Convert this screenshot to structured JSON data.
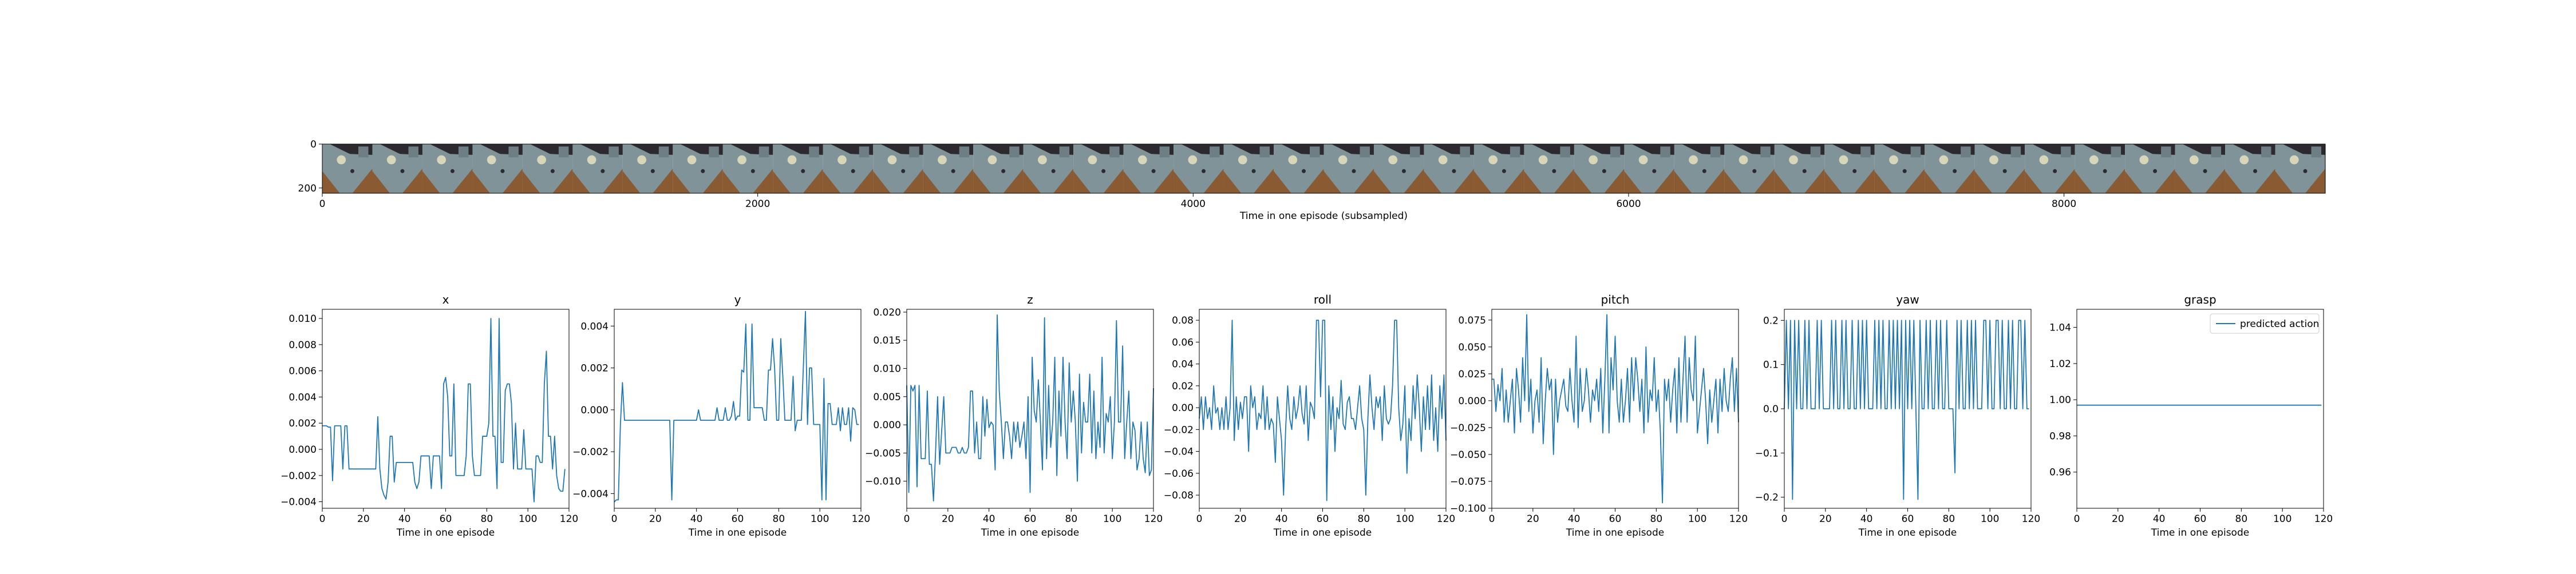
{
  "chart_data": [
    {
      "type": "image_strip",
      "xlabel": "Time in one episode (subsampled)",
      "x_ticks": [
        "0",
        "2000",
        "4000",
        "6000",
        "8000"
      ],
      "y_ticks": [
        "0",
        "200"
      ],
      "xlim": [
        0,
        9200
      ],
      "ylim": [
        0,
        224
      ],
      "frame_count": 40,
      "colors": {
        "wood": "#8a5a33",
        "tray": "#7f9398",
        "dark": "#2c2a2e",
        "light": "#d8d6b8",
        "sky": "#6f7e84"
      }
    },
    {
      "type": "line",
      "title": "x",
      "xlabel": "Time in one episode",
      "xlim": [
        0,
        120
      ],
      "ylim": [
        -0.0045,
        0.0107
      ],
      "x_ticks": [
        0,
        20,
        40,
        60,
        80,
        100,
        120
      ],
      "y_ticks": [
        -0.004,
        -0.002,
        0.0,
        0.002,
        0.004,
        0.006,
        0.008,
        0.01
      ],
      "y_tick_labels": [
        "−0.004",
        "−0.002",
        "0.000",
        "0.002",
        "0.004",
        "0.006",
        "0.008",
        "0.010"
      ],
      "color": "#1f77b4",
      "values": [
        0.0018,
        0.0018,
        0.0018,
        0.0017,
        0.0017,
        -0.0024,
        0.0018,
        0.0018,
        0.0018,
        0.0018,
        -0.0015,
        0.0018,
        0.0018,
        -0.0015,
        -0.0015,
        -0.0015,
        -0.0015,
        -0.0015,
        -0.0015,
        -0.0015,
        -0.0015,
        -0.0015,
        -0.0015,
        -0.0015,
        -0.0015,
        -0.0015,
        -0.0015,
        0.0025,
        -0.0015,
        -0.003,
        -0.0035,
        -0.0038,
        -0.0025,
        0.001,
        0.001,
        -0.0025,
        -0.001,
        -0.001,
        -0.001,
        -0.001,
        -0.001,
        -0.001,
        -0.001,
        -0.001,
        -0.001,
        -0.0025,
        -0.003,
        -0.0025,
        -0.0005,
        -0.0005,
        -0.0005,
        -0.0005,
        -0.0005,
        -0.003,
        -0.0005,
        -0.0005,
        -0.0005,
        -0.0005,
        -0.003,
        0.005,
        0.0055,
        0.004,
        -0.0005,
        -0.0005,
        0.005,
        -0.002,
        -0.002,
        -0.002,
        -0.002,
        -0.002,
        -0.0005,
        0.005,
        0.005,
        -0.0005,
        -0.002,
        -0.002,
        -0.002,
        -0.002,
        0.001,
        0.001,
        0.001,
        0.002,
        0.01,
        0.001,
        0.001,
        -0.003,
        0.01,
        -0.001,
        -0.001,
        0.0045,
        0.005,
        0.005,
        0.0035,
        -0.0015,
        0.002,
        -0.0015,
        -0.0015,
        -0.0015,
        0.0015,
        -0.0015,
        -0.0015,
        -0.0015,
        -0.0015,
        -0.004,
        -0.0005,
        -0.0005,
        -0.001,
        -0.001,
        0.005,
        0.0075,
        0.001,
        0.001,
        -0.0015,
        0.001,
        -0.002,
        -0.003,
        -0.0032,
        -0.0032,
        -0.0015
      ]
    },
    {
      "type": "line",
      "title": "y",
      "xlabel": "Time in one episode",
      "xlim": [
        0,
        120
      ],
      "ylim": [
        -0.0047,
        0.0048
      ],
      "x_ticks": [
        0,
        20,
        40,
        60,
        80,
        100,
        120
      ],
      "y_ticks": [
        -0.004,
        -0.002,
        0.0,
        0.002,
        0.004
      ],
      "y_tick_labels": [
        "−0.004",
        "−0.002",
        "0.000",
        "0.002",
        "0.004"
      ],
      "color": "#1f77b4",
      "values": [
        -0.0044,
        -0.0043,
        -0.0043,
        -0.0007,
        0.0013,
        -0.0005,
        -0.0005,
        -0.0005,
        -0.0005,
        -0.0005,
        -0.0005,
        -0.0005,
        -0.0005,
        -0.0005,
        -0.0005,
        -0.0005,
        -0.0005,
        -0.0005,
        -0.0005,
        -0.0005,
        -0.0005,
        -0.0005,
        -0.0005,
        -0.0005,
        -0.0005,
        -0.0005,
        -0.0005,
        -0.0005,
        -0.0043,
        -0.0005,
        -0.0005,
        -0.0005,
        -0.0005,
        -0.0005,
        -0.0005,
        -0.0005,
        -0.0005,
        -0.0005,
        -0.0005,
        -0.0005,
        -0.0005,
        0.0,
        -0.0005,
        -0.0005,
        -0.0005,
        -0.0005,
        -0.0005,
        -0.0005,
        -0.0005,
        -0.0005,
        0.0001,
        -0.0005,
        -0.0005,
        -0.0005,
        0.0001,
        -0.0005,
        -0.0005,
        -0.0003,
        0.0004,
        -0.0005,
        -0.0003,
        -0.0003,
        0.0019,
        0.0018,
        0.0041,
        -0.0005,
        -0.0005,
        0.0041,
        0.0001,
        0.0001,
        0.0001,
        0.0001,
        0.0001,
        -0.0005,
        -0.0005,
        0.0019,
        0.0019,
        0.0034,
        0.002,
        -0.0005,
        -0.0005,
        0.0034,
        0.0016,
        -0.0005,
        -0.0005,
        -0.0005,
        -0.0005,
        0.0016,
        -0.001,
        -0.0005,
        -0.0005,
        -0.0005,
        0.0021,
        0.0047,
        -0.0007,
        0.002,
        0.002,
        -0.0007,
        -0.0007,
        -0.0007,
        -0.0007,
        -0.0043,
        0.0015,
        -0.0043,
        0.0003,
        0.0003,
        -0.0007,
        -0.0007,
        -0.0007,
        0.0001,
        -0.001,
        0.0001,
        -0.0007,
        -0.0007,
        0.0001,
        -0.0015,
        0.0001,
        0.0,
        -0.0007,
        -0.0007
      ]
    },
    {
      "type": "line",
      "title": "z",
      "xlabel": "Time in one episode",
      "xlim": [
        0,
        120
      ],
      "ylim": [
        -0.0148,
        0.0205
      ],
      "x_ticks": [
        0,
        20,
        40,
        60,
        80,
        100,
        120
      ],
      "y_ticks": [
        -0.01,
        -0.005,
        0.0,
        0.005,
        0.01,
        0.015,
        0.02
      ],
      "y_tick_labels": [
        "−0.010",
        "−0.005",
        "0.000",
        "0.005",
        "0.010",
        "0.015",
        "0.020"
      ],
      "color": "#1f77b4",
      "values": [
        0.007,
        -0.012,
        0.007,
        0.006,
        0.007,
        -0.011,
        0.007,
        -0.006,
        -0.006,
        -0.006,
        0.006,
        -0.007,
        -0.007,
        -0.0135,
        -0.005,
        0.005,
        -0.007,
        -0.001,
        0.005,
        -0.005,
        -0.005,
        -0.005,
        -0.004,
        -0.004,
        -0.004,
        -0.005,
        -0.005,
        -0.004,
        -0.005,
        -0.005,
        -0.004,
        0.006,
        0.006,
        -0.005,
        0.0005,
        -0.006,
        -0.006,
        0.005,
        -0.002,
        0.0045,
        -0.0005,
        0.0005,
        0.0,
        -0.008,
        0.0195,
        0.006,
        0.0005,
        -0.006,
        0.0005,
        0.0005,
        -0.002,
        -0.006,
        0.0005,
        -0.003,
        0.0005,
        -0.004,
        -0.002,
        0.0005,
        -0.006,
        0.005,
        -0.012,
        0.012,
        0.0025,
        0.0005,
        0.008,
        0.0005,
        -0.008,
        0.019,
        -0.006,
        0.007,
        -0.004,
        0.0005,
        0.012,
        -0.009,
        0.006,
        -0.002,
        0.012,
        0.0005,
        -0.006,
        0.011,
        0.0005,
        0.006,
        0.0005,
        -0.01,
        0.009,
        -0.005,
        0.004,
        0.0005,
        0.0005,
        0.009,
        -0.005,
        0.006,
        -0.006,
        0.0005,
        -0.004,
        0.012,
        -0.005,
        0.002,
        0.0005,
        0.005,
        -0.006,
        0.0005,
        0.0185,
        0.0005,
        0.0005,
        0.014,
        -0.006,
        0.0005,
        0.006,
        -0.006,
        0.0005,
        -0.001,
        -0.008,
        -0.006,
        0.0005,
        -0.006,
        -0.0085,
        0.0005,
        -0.009,
        -0.008,
        0.0065
      ]
    },
    {
      "type": "line",
      "title": "roll",
      "xlabel": "Time in one episode",
      "xlim": [
        0,
        120
      ],
      "ylim": [
        -0.092,
        0.09
      ],
      "x_ticks": [
        0,
        20,
        40,
        60,
        80,
        100,
        120
      ],
      "y_ticks": [
        -0.08,
        -0.06,
        -0.04,
        -0.02,
        0.0,
        0.02,
        0.04,
        0.06,
        0.08
      ],
      "y_tick_labels": [
        "−0.08",
        "−0.06",
        "−0.04",
        "−0.02",
        "0.00",
        "0.02",
        "0.04",
        "0.06",
        "0.08"
      ],
      "color": "#1f77b4",
      "values": [
        -0.01,
        0.01,
        -0.02,
        0.01,
        -0.01,
        0.0,
        -0.02,
        0.02,
        -0.005,
        0.0,
        -0.02,
        0.0,
        -0.02,
        0.01,
        -0.02,
        0.0,
        0.08,
        -0.03,
        0.01,
        -0.02,
        0.005,
        -0.01,
        0.01,
        0.01,
        -0.04,
        0.02,
        0.0,
        0.01,
        -0.02,
        -0.005,
        -0.01,
        0.02,
        -0.02,
        0.01,
        -0.02,
        -0.01,
        -0.015,
        -0.05,
        0.01,
        -0.01,
        -0.03,
        -0.08,
        -0.02,
        0.02,
        -0.01,
        -0.02,
        0.01,
        -0.01,
        0.0,
        0.02,
        -0.005,
        -0.015,
        0.02,
        -0.03,
        0.005,
        0.0,
        -0.01,
        0.08,
        0.08,
        0.01,
        0.08,
        0.08,
        -0.085,
        0.02,
        -0.02,
        0.01,
        -0.04,
        0.0,
        -0.01,
        0.025,
        -0.015,
        -0.02,
        0.005,
        0.01,
        -0.01,
        -0.01,
        -0.02,
        0.0,
        0.02,
        -0.01,
        -0.02,
        -0.08,
        -0.01,
        0.03,
        0.0,
        -0.02,
        0.01,
        0.0,
        0.01,
        -0.03,
        0.02,
        -0.01,
        -0.015,
        -0.01,
        0.02,
        0.08,
        0.08,
        0.0,
        -0.03,
        -0.015,
        0.02,
        -0.06,
        -0.01,
        -0.03,
        0.02,
        -0.01,
        0.03,
        0.0,
        -0.04,
        0.01,
        -0.02,
        0.02,
        -0.02,
        0.03,
        -0.03,
        0.0,
        -0.04,
        0.02,
        -0.01,
        0.03,
        -0.03
      ]
    },
    {
      "type": "line",
      "title": "pitch",
      "xlabel": "Time in one episode",
      "xlim": [
        0,
        120
      ],
      "ylim": [
        -0.1,
        0.085
      ],
      "x_ticks": [
        0,
        20,
        40,
        60,
        80,
        100,
        120
      ],
      "y_ticks": [
        -0.1,
        -0.075,
        -0.05,
        -0.025,
        0.0,
        0.025,
        0.05,
        0.075
      ],
      "y_tick_labels": [
        "−0.100",
        "−0.075",
        "−0.050",
        "−0.025",
        "0.000",
        "0.025",
        "0.050",
        "0.075"
      ],
      "color": "#1f77b4",
      "values": [
        0.02,
        0.02,
        -0.01,
        0.015,
        0.0,
        0.03,
        -0.02,
        0.01,
        -0.02,
        0.0,
        0.02,
        -0.03,
        0.03,
        0.01,
        -0.02,
        0.04,
        0.0,
        0.08,
        -0.01,
        0.02,
        -0.03,
        0.0,
        0.01,
        -0.02,
        0.04,
        -0.04,
        0.0,
        0.03,
        0.01,
        0.02,
        -0.05,
        0.02,
        -0.02,
        0.0,
        0.01,
        0.02,
        -0.005,
        -0.01,
        0.03,
        0.0,
        -0.02,
        0.06,
        -0.025,
        0.03,
        -0.01,
        0.0,
        0.03,
        0.01,
        -0.02,
        0.01,
        0.0,
        0.02,
        -0.01,
        0.03,
        -0.03,
        0.02,
        0.08,
        -0.03,
        0.04,
        0.01,
        0.06,
        0.0,
        -0.02,
        0.02,
        -0.02,
        0.0,
        0.03,
        -0.02,
        0.04,
        0.0,
        0.04,
        0.02,
        -0.01,
        0.02,
        -0.03,
        0.05,
        -0.02,
        0.01,
        0.0,
        0.04,
        -0.01,
        0.01,
        -0.03,
        -0.095,
        0.02,
        0.0,
        0.02,
        -0.02,
        0.01,
        0.03,
        -0.03,
        0.04,
        -0.02,
        0.02,
        0.06,
        -0.02,
        0.04,
        0.01,
        0.0,
        0.06,
        -0.03,
        -0.01,
        0.01,
        0.03,
        0.0,
        -0.04,
        0.01,
        -0.02,
        0.0,
        0.02,
        -0.03,
        0.02,
        -0.01,
        0.03,
        0.0,
        -0.01,
        0.02,
        0.04,
        -0.01,
        0.03,
        -0.02
      ]
    },
    {
      "type": "line",
      "title": "yaw",
      "xlabel": "Time in one episode",
      "xlim": [
        0,
        120
      ],
      "ylim": [
        -0.225,
        0.225
      ],
      "x_ticks": [
        0,
        20,
        40,
        60,
        80,
        100,
        120
      ],
      "y_ticks": [
        -0.2,
        -0.1,
        0.0,
        0.1,
        0.2
      ],
      "y_tick_labels": [
        "−0.2",
        "−0.1",
        "0.0",
        "0.1",
        "0.2"
      ],
      "color": "#1f77b4",
      "values": [
        0.0,
        0.2,
        0.0,
        0.2,
        -0.205,
        0.2,
        0.0,
        0.2,
        0.0,
        0.0,
        0.2,
        0.0,
        0.2,
        0.0,
        0.0,
        0.0,
        0.2,
        0.0,
        0.2,
        0.0,
        0.0,
        0.0,
        0.0,
        0.2,
        0.0,
        0.2,
        0.0,
        0.0,
        0.2,
        0.0,
        0.2,
        0.0,
        0.0,
        0.2,
        0.0,
        0.0,
        0.2,
        0.0,
        0.2,
        0.0,
        0.2,
        0.0,
        0.0,
        0.0,
        0.2,
        0.0,
        0.2,
        0.0,
        0.2,
        0.0,
        0.0,
        0.2,
        0.0,
        0.2,
        0.0,
        0.2,
        0.0,
        0.2,
        -0.205,
        0.2,
        0.0,
        0.2,
        0.0,
        0.2,
        0.0,
        -0.205,
        0.2,
        0.0,
        0.0,
        0.2,
        0.0,
        0.2,
        0.0,
        0.0,
        0.2,
        0.0,
        0.2,
        0.0,
        0.0,
        0.2,
        0.0,
        0.0,
        0.0,
        -0.145,
        0.2,
        0.0,
        0.2,
        0.0,
        0.0,
        0.2,
        0.0,
        0.2,
        0.0,
        0.2,
        0.0,
        0.0,
        0.0,
        0.2,
        0.2,
        0.0,
        0.2,
        0.0,
        0.0,
        0.2,
        0.2,
        0.0,
        0.2,
        0.0,
        0.0,
        0.2,
        0.0,
        0.2,
        0.0,
        0.0,
        0.2,
        0.2,
        0.0,
        0.2,
        0.0,
        0.0
      ]
    },
    {
      "type": "line",
      "title": "grasp",
      "xlabel": "Time in one episode",
      "xlim": [
        0,
        120
      ],
      "ylim": [
        0.94,
        1.05
      ],
      "x_ticks": [
        0,
        20,
        40,
        60,
        80,
        100,
        120
      ],
      "y_ticks": [
        0.96,
        0.98,
        1.0,
        1.02,
        1.04
      ],
      "y_tick_labels": [
        "0.96",
        "0.98",
        "1.00",
        "1.02",
        "1.04"
      ],
      "color": "#1f77b4",
      "legend": "predicted action",
      "legend_position": "top-right",
      "x_start": 0,
      "x_end": 119,
      "values": [
        0.997,
        0.997
      ]
    }
  ]
}
